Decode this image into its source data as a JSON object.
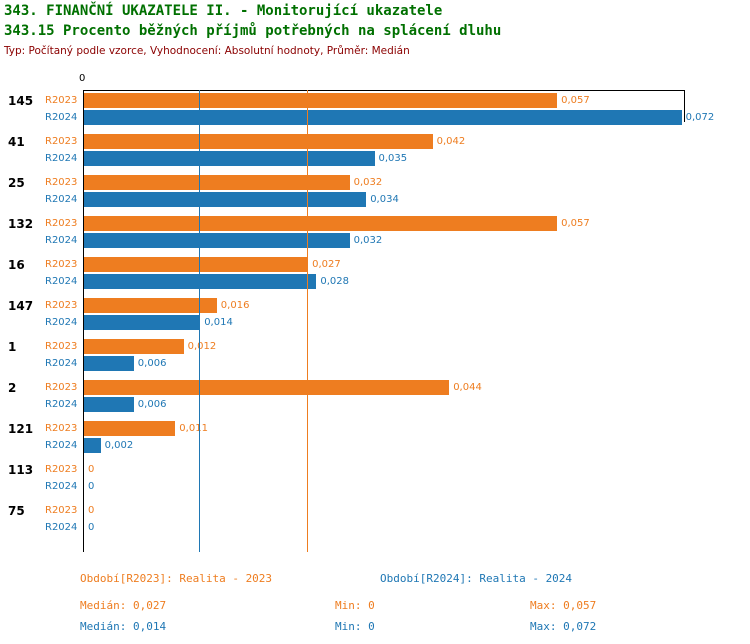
{
  "header": {
    "title1": "343. FINANČNÍ UKAZATELE II. - Monitorující ukazatele",
    "title2": "343.15 Procento běžných příjmů potřebných na splácení dluhu",
    "subtitle": "Typ: Počítaný podle vzorce, Vyhodnocení: Absolutní hodnoty, Průměr: Medián"
  },
  "colors": {
    "r2023": "#EE7D20",
    "r2024": "#1F77B4",
    "title_green": "#007000",
    "subtitle_maroon": "#8B0000",
    "axis_black": "#000000"
  },
  "chart_data": {
    "type": "bar",
    "orientation": "horizontal",
    "title": "343.15 Procento běžných příjmů potřebných na splácení dluhu",
    "categories": [
      "145",
      "41",
      "25",
      "132",
      "16",
      "147",
      "1",
      "2",
      "121",
      "113",
      "75"
    ],
    "series": [
      {
        "name": "R2023",
        "color": "#EE7D20",
        "values": [
          0.057,
          0.042,
          0.032,
          0.057,
          0.027,
          0.016,
          0.012,
          0.044,
          0.011,
          0,
          0
        ]
      },
      {
        "name": "R2024",
        "color": "#1F77B4",
        "values": [
          0.072,
          0.035,
          0.034,
          0.032,
          0.028,
          0.014,
          0.006,
          0.006,
          0.002,
          0,
          0
        ]
      }
    ],
    "value_labels": [
      [
        "0,057",
        "0,072"
      ],
      [
        "0,042",
        "0,035"
      ],
      [
        "0,032",
        "0,034"
      ],
      [
        "0,057",
        "0,032"
      ],
      [
        "0,027",
        "0,028"
      ],
      [
        "0,016",
        "0,014"
      ],
      [
        "0,012",
        "0,006"
      ],
      [
        "0,044",
        "0,006"
      ],
      [
        "0,011",
        "0,002"
      ],
      [
        "0",
        "0"
      ],
      [
        "0",
        "0"
      ]
    ],
    "xlim": [
      0,
      0.0725
    ],
    "zero_tick_label": "0",
    "grid": false,
    "legend_position": "bottom",
    "reference_lines": [
      {
        "name": "median-2024",
        "value": 0.014,
        "color": "#1F77B4"
      },
      {
        "name": "median-2023",
        "value": 0.027,
        "color": "#EE7D20"
      }
    ]
  },
  "legend": {
    "r2023": {
      "period": "Období[R2023]: Realita - 2023",
      "median": "Medián: 0,027",
      "min": "Min: 0",
      "max": "Max: 0,057"
    },
    "r2024": {
      "period": "Období[R2024]: Realita - 2024",
      "median": "Medián: 0,014",
      "min": "Min: 0",
      "max": "Max: 0,072"
    }
  }
}
